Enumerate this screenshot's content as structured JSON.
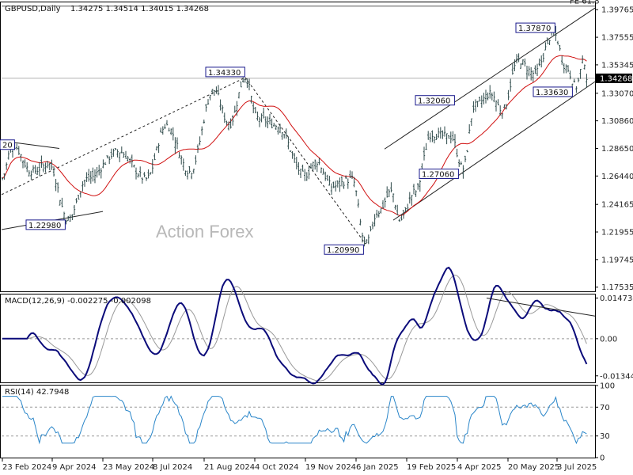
{
  "chart_data": [
    {
      "type": "candlestick",
      "title": "GBPUSD,Daily",
      "ohlc": "1.34275 1.34514 1.34015 1.34268",
      "watermark": "Action Forex",
      "ylim": [
        1.172,
        1.4035
      ],
      "price_ticks": [
        "1.39765",
        "1.37555",
        "1.35345",
        "1.33070",
        "1.30860",
        "1.28650",
        "1.26440",
        "1.24165",
        "1.21955",
        "1.19745",
        "1.17535"
      ],
      "current_price": "1.34268",
      "x_ticks": [
        "23 Feb 2024",
        "9 Apr 2024",
        "23 May 2024",
        "8 Jul 2024",
        "21 Aug 2024",
        "4 Oct 2024",
        "19 Nov 2024",
        "6 Jan 2025",
        "19 Feb 2025",
        "4 Apr 2025",
        "20 May 2025",
        "3 Jul 2025"
      ],
      "fib_label": "FE 61.8",
      "fib_level": 1.4005,
      "annotations": [
        {
          "label": "1.22980",
          "price": 1.2298
        },
        {
          "label": "1.34330",
          "price": 1.3433
        },
        {
          "label": "1.20990",
          "price": 1.2099
        },
        {
          "label": "1.27060",
          "price": 1.2706
        },
        {
          "label": "1.32060",
          "price": 1.3206
        },
        {
          "label": "1.37870",
          "price": 1.3787
        },
        {
          "label": "1.33630",
          "price": 1.3363
        },
        {
          "label": "20",
          "price": 1.2895
        }
      ],
      "series": [
        {
          "name": "Price",
          "color": "#2e4a4a"
        },
        {
          "name": "MA",
          "color": "#d01010"
        }
      ]
    },
    {
      "type": "line",
      "title": "MACD(12,26,9) -0.002275 -0.002098",
      "ylim": [
        -0.0158,
        0.016
      ],
      "y_ticks": [
        "0.014734",
        "0.00",
        "-0.013442"
      ],
      "series": [
        {
          "name": "MACD",
          "color": "#0b0b7a"
        },
        {
          "name": "Signal",
          "color": "#999999"
        }
      ]
    },
    {
      "type": "line",
      "title": "RSI(14) 42.7948",
      "ylim": [
        0,
        100
      ],
      "y_ticks": [
        "100",
        "70",
        "30",
        "0"
      ],
      "series": [
        {
          "name": "RSI",
          "color": "#2a86c9"
        }
      ]
    }
  ]
}
